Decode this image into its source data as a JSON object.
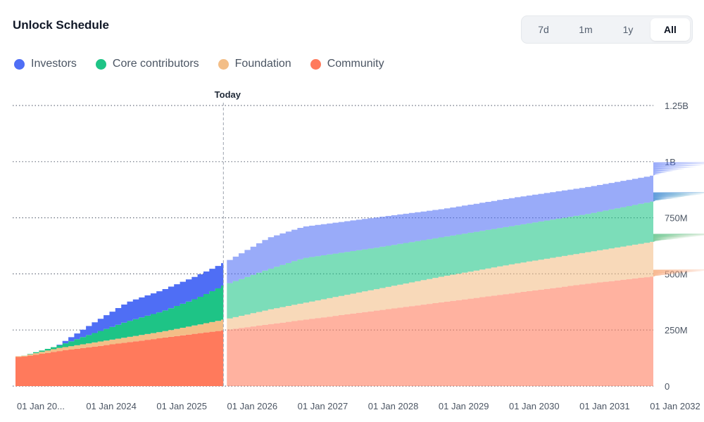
{
  "header": {
    "title": "Unlock Schedule",
    "ranges": [
      {
        "label": "7d",
        "active": false
      },
      {
        "label": "1m",
        "active": false
      },
      {
        "label": "1y",
        "active": false
      },
      {
        "label": "All",
        "active": true
      }
    ]
  },
  "colors": {
    "investors": "#4f6ef5",
    "core": "#1ec486",
    "foundation": "#f3be87",
    "community": "#ff7a5c",
    "grid": "#6b7280",
    "text": "#4b5563"
  },
  "chart_data": {
    "type": "area",
    "stacked": true,
    "today_label": "Today",
    "today": 2025.9,
    "xlim": [
      2022.95,
      2033.0
    ],
    "ylim": [
      0,
      1.25
    ],
    "yticks": [
      0,
      0.25,
      0.5,
      0.75,
      1.0,
      1.25
    ],
    "ytick_labels": [
      "0",
      "250M",
      "500M",
      "750M",
      "1B",
      "1.25B"
    ],
    "xtick_positions": [
      2023.0,
      2024.0,
      2025.0,
      2026.0,
      2027.0,
      2028.0,
      2029.0,
      2030.0,
      2031.0,
      2032.0
    ],
    "xtick_labels": [
      "01 Jan 20...",
      "01 Jan 2024",
      "01 Jan 2025",
      "01 Jan 2026",
      "01 Jan 2027",
      "01 Jan 2028",
      "01 Jan 2029",
      "01 Jan 2030",
      "01 Jan 2031",
      "01 Jan 2032"
    ],
    "unit": "billion tokens",
    "x": [
      2023.0,
      2023.5,
      2024.0,
      2024.5,
      2025.0,
      2025.5,
      2025.9,
      2026.5,
      2027.0,
      2028.0,
      2029.0,
      2030.0,
      2031.0,
      2032.0,
      2033.0
    ],
    "series": [
      {
        "name": "Community",
        "color_key": "community",
        "values": [
          0.13,
          0.155,
          0.175,
          0.195,
          0.215,
          0.235,
          0.25,
          0.275,
          0.295,
          0.335,
          0.375,
          0.415,
          0.455,
          0.49,
          0.52
        ]
      },
      {
        "name": "Foundation",
        "color_key": "foundation",
        "values": [
          0.003,
          0.013,
          0.018,
          0.023,
          0.028,
          0.038,
          0.048,
          0.065,
          0.075,
          0.095,
          0.115,
          0.13,
          0.14,
          0.155,
          0.16
        ]
      },
      {
        "name": "Core contributors",
        "color_key": "core",
        "values": [
          0.0,
          0.01,
          0.04,
          0.07,
          0.09,
          0.12,
          0.155,
          0.18,
          0.2,
          0.185,
          0.175,
          0.17,
          0.17,
          0.18,
          0.185
        ]
      },
      {
        "name": "Investors",
        "color_key": "investors",
        "values": [
          0.0,
          0.0,
          0.045,
          0.085,
          0.095,
          0.1,
          0.1,
          0.14,
          0.14,
          0.135,
          0.125,
          0.125,
          0.12,
          0.115,
          0.135
        ]
      }
    ],
    "legend": [
      "Investors",
      "Core contributors",
      "Foundation",
      "Community"
    ]
  }
}
